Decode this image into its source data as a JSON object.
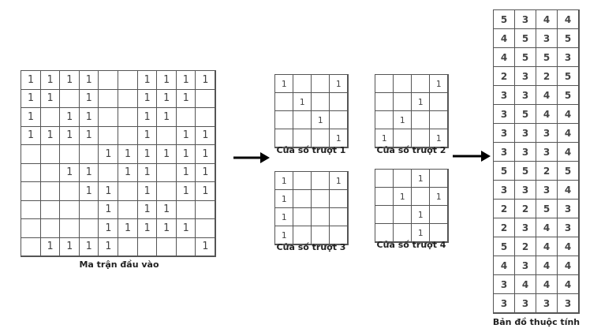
{
  "input_matrix": {
    "caption": "Ma trận đầu vào",
    "rows": [
      [
        "1",
        "1",
        "1",
        "1",
        "",
        "",
        "1",
        "1",
        "1",
        "1"
      ],
      [
        "1",
        "1",
        "",
        "1",
        "",
        "",
        "1",
        "1",
        "1",
        ""
      ],
      [
        "1",
        "",
        "1",
        "1",
        "",
        "",
        "1",
        "1",
        "",
        ""
      ],
      [
        "1",
        "1",
        "1",
        "1",
        "",
        "",
        "1",
        "",
        "1",
        "1"
      ],
      [
        "",
        "",
        "",
        "",
        "1",
        "1",
        "1",
        "1",
        "1",
        "1"
      ],
      [
        "",
        "",
        "1",
        "1",
        "",
        "1",
        "1",
        "",
        "1",
        "1"
      ],
      [
        "",
        "",
        "",
        "1",
        "1",
        "",
        "1",
        "",
        "1",
        "1"
      ],
      [
        "",
        "",
        "",
        "",
        "1",
        "",
        "1",
        "1",
        "",
        ""
      ],
      [
        "",
        "",
        "",
        "",
        "1",
        "1",
        "1",
        "1",
        "1",
        ""
      ],
      [
        "",
        "1",
        "1",
        "1",
        "1",
        "",
        "",
        "",
        "",
        "1"
      ]
    ]
  },
  "windows": [
    {
      "caption": "Cửa số trượt 1",
      "rows": [
        [
          "1",
          "",
          "",
          "1"
        ],
        [
          "",
          "1",
          "",
          ""
        ],
        [
          "",
          "",
          "1",
          ""
        ],
        [
          "",
          "",
          "",
          "1"
        ]
      ]
    },
    {
      "caption": "Cửa số trượt 2",
      "rows": [
        [
          "",
          "",
          "",
          "1"
        ],
        [
          "",
          "",
          "1",
          ""
        ],
        [
          "",
          "1",
          "",
          ""
        ],
        [
          "1",
          "",
          "",
          "1"
        ]
      ]
    },
    {
      "caption": "Cửa số trượt 3",
      "rows": [
        [
          "1",
          "",
          "",
          "1"
        ],
        [
          "1",
          "",
          "",
          ""
        ],
        [
          "1",
          "",
          "",
          ""
        ],
        [
          "1",
          "",
          "",
          ""
        ]
      ]
    },
    {
      "caption": "Cửa số trượt 4",
      "rows": [
        [
          "",
          "",
          "1",
          ""
        ],
        [
          "",
          "1",
          "",
          "1"
        ],
        [
          "",
          "",
          "1",
          ""
        ],
        [
          "",
          "",
          "1",
          ""
        ]
      ]
    }
  ],
  "feature_map": {
    "caption": "Bản đồ thuộc tính",
    "rows": [
      [
        "5",
        "3",
        "4",
        "4"
      ],
      [
        "4",
        "5",
        "3",
        "5"
      ],
      [
        "4",
        "5",
        "5",
        "3"
      ],
      [
        "2",
        "3",
        "2",
        "5"
      ],
      [
        "3",
        "3",
        "4",
        "5"
      ],
      [
        "3",
        "5",
        "4",
        "4"
      ],
      [
        "3",
        "3",
        "3",
        "4"
      ],
      [
        "3",
        "3",
        "3",
        "4"
      ],
      [
        "5",
        "5",
        "2",
        "5"
      ],
      [
        "3",
        "3",
        "3",
        "4"
      ],
      [
        "2",
        "2",
        "5",
        "3"
      ],
      [
        "2",
        "3",
        "4",
        "3"
      ],
      [
        "5",
        "2",
        "4",
        "4"
      ],
      [
        "4",
        "3",
        "4",
        "4"
      ],
      [
        "3",
        "4",
        "4",
        "4"
      ],
      [
        "3",
        "3",
        "3",
        "3"
      ]
    ]
  },
  "colors": {
    "grid_line": "#555555",
    "text": "#444444",
    "arrow": "#000000"
  },
  "icons": [
    "right-arrow-icon"
  ]
}
